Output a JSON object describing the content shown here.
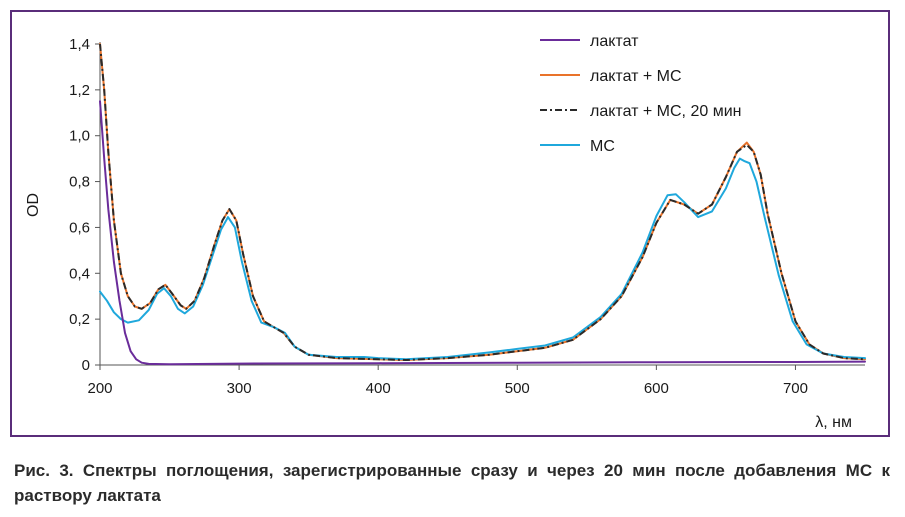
{
  "caption": "Рис. 3. Спектры поглощения, зарегистрированные сразу и через 20 мин после добавления МС к раствору лактата",
  "chart_data": {
    "type": "line",
    "xlabel": "λ, нм",
    "ylabel": "OD",
    "xlim": [
      200,
      750
    ],
    "ylim": [
      0,
      1.4
    ],
    "x_ticks": [
      "200",
      "300",
      "400",
      "500",
      "600",
      "700"
    ],
    "y_ticks": [
      "0",
      "0,2",
      "0,4",
      "0,6",
      "0,8",
      "1,0",
      "1,2",
      "1,4"
    ],
    "grid": false,
    "legend_position": "top-right",
    "series": [
      {
        "name": "лактат",
        "color": "#6a2c9a",
        "dash": "solid",
        "points": [
          [
            200,
            1.15
          ],
          [
            203,
            0.9
          ],
          [
            206,
            0.68
          ],
          [
            210,
            0.45
          ],
          [
            214,
            0.28
          ],
          [
            218,
            0.14
          ],
          [
            222,
            0.06
          ],
          [
            226,
            0.025
          ],
          [
            230,
            0.01
          ],
          [
            235,
            0.005
          ],
          [
            250,
            0.003
          ],
          [
            300,
            0.006
          ],
          [
            400,
            0.008
          ],
          [
            500,
            0.01
          ],
          [
            600,
            0.012
          ],
          [
            700,
            0.013
          ],
          [
            750,
            0.015
          ]
        ]
      },
      {
        "name": "лактат + МС",
        "color": "#e9732a",
        "dash": "solid",
        "points": [
          [
            200,
            1.4
          ],
          [
            203,
            1.2
          ],
          [
            206,
            0.93
          ],
          [
            210,
            0.63
          ],
          [
            215,
            0.4
          ],
          [
            220,
            0.3
          ],
          [
            225,
            0.255
          ],
          [
            230,
            0.245
          ],
          [
            236,
            0.27
          ],
          [
            242,
            0.33
          ],
          [
            247,
            0.35
          ],
          [
            252,
            0.31
          ],
          [
            258,
            0.26
          ],
          [
            262,
            0.245
          ],
          [
            268,
            0.28
          ],
          [
            275,
            0.38
          ],
          [
            282,
            0.52
          ],
          [
            288,
            0.63
          ],
          [
            293,
            0.68
          ],
          [
            298,
            0.63
          ],
          [
            303,
            0.48
          ],
          [
            310,
            0.3
          ],
          [
            318,
            0.19
          ],
          [
            325,
            0.165
          ],
          [
            332,
            0.14
          ],
          [
            340,
            0.08
          ],
          [
            350,
            0.045
          ],
          [
            370,
            0.03
          ],
          [
            400,
            0.025
          ],
          [
            420,
            0.022
          ],
          [
            450,
            0.03
          ],
          [
            480,
            0.045
          ],
          [
            500,
            0.06
          ],
          [
            520,
            0.075
          ],
          [
            540,
            0.11
          ],
          [
            560,
            0.2
          ],
          [
            575,
            0.3
          ],
          [
            590,
            0.47
          ],
          [
            600,
            0.62
          ],
          [
            610,
            0.72
          ],
          [
            620,
            0.7
          ],
          [
            630,
            0.66
          ],
          [
            640,
            0.7
          ],
          [
            650,
            0.82
          ],
          [
            658,
            0.93
          ],
          [
            665,
            0.97
          ],
          [
            670,
            0.93
          ],
          [
            675,
            0.83
          ],
          [
            680,
            0.66
          ],
          [
            690,
            0.4
          ],
          [
            700,
            0.19
          ],
          [
            710,
            0.09
          ],
          [
            720,
            0.05
          ],
          [
            735,
            0.03
          ],
          [
            750,
            0.025
          ]
        ]
      },
      {
        "name": "лактат + МС, 20 мин",
        "color": "#2a2a2a",
        "dash": "dashdot",
        "points": [
          [
            200,
            1.4
          ],
          [
            203,
            1.2
          ],
          [
            206,
            0.93
          ],
          [
            210,
            0.63
          ],
          [
            215,
            0.4
          ],
          [
            220,
            0.3
          ],
          [
            225,
            0.255
          ],
          [
            230,
            0.245
          ],
          [
            236,
            0.27
          ],
          [
            242,
            0.33
          ],
          [
            247,
            0.35
          ],
          [
            252,
            0.31
          ],
          [
            258,
            0.26
          ],
          [
            262,
            0.245
          ],
          [
            268,
            0.28
          ],
          [
            275,
            0.38
          ],
          [
            282,
            0.52
          ],
          [
            288,
            0.63
          ],
          [
            293,
            0.68
          ],
          [
            298,
            0.63
          ],
          [
            303,
            0.48
          ],
          [
            310,
            0.3
          ],
          [
            318,
            0.19
          ],
          [
            325,
            0.165
          ],
          [
            332,
            0.14
          ],
          [
            340,
            0.08
          ],
          [
            350,
            0.045
          ],
          [
            370,
            0.03
          ],
          [
            400,
            0.025
          ],
          [
            420,
            0.022
          ],
          [
            450,
            0.03
          ],
          [
            480,
            0.045
          ],
          [
            500,
            0.06
          ],
          [
            520,
            0.075
          ],
          [
            540,
            0.11
          ],
          [
            560,
            0.2
          ],
          [
            575,
            0.3
          ],
          [
            590,
            0.47
          ],
          [
            600,
            0.62
          ],
          [
            610,
            0.72
          ],
          [
            620,
            0.7
          ],
          [
            630,
            0.66
          ],
          [
            640,
            0.7
          ],
          [
            650,
            0.82
          ],
          [
            658,
            0.93
          ],
          [
            665,
            0.96
          ],
          [
            670,
            0.93
          ],
          [
            675,
            0.83
          ],
          [
            680,
            0.66
          ],
          [
            690,
            0.4
          ],
          [
            700,
            0.19
          ],
          [
            710,
            0.09
          ],
          [
            720,
            0.05
          ],
          [
            735,
            0.03
          ],
          [
            750,
            0.025
          ]
        ]
      },
      {
        "name": "МС",
        "color": "#1fa8dc",
        "dash": "solid",
        "points": [
          [
            200,
            0.32
          ],
          [
            205,
            0.28
          ],
          [
            210,
            0.23
          ],
          [
            215,
            0.2
          ],
          [
            220,
            0.185
          ],
          [
            228,
            0.195
          ],
          [
            235,
            0.24
          ],
          [
            241,
            0.31
          ],
          [
            246,
            0.335
          ],
          [
            251,
            0.3
          ],
          [
            256,
            0.245
          ],
          [
            261,
            0.225
          ],
          [
            267,
            0.255
          ],
          [
            274,
            0.35
          ],
          [
            281,
            0.48
          ],
          [
            287,
            0.59
          ],
          [
            292,
            0.645
          ],
          [
            297,
            0.6
          ],
          [
            302,
            0.45
          ],
          [
            309,
            0.28
          ],
          [
            316,
            0.185
          ],
          [
            325,
            0.165
          ],
          [
            333,
            0.14
          ],
          [
            340,
            0.08
          ],
          [
            350,
            0.045
          ],
          [
            370,
            0.035
          ],
          [
            390,
            0.035
          ],
          [
            400,
            0.03
          ],
          [
            420,
            0.025
          ],
          [
            450,
            0.035
          ],
          [
            480,
            0.055
          ],
          [
            500,
            0.07
          ],
          [
            520,
            0.085
          ],
          [
            540,
            0.12
          ],
          [
            560,
            0.21
          ],
          [
            575,
            0.31
          ],
          [
            590,
            0.49
          ],
          [
            600,
            0.65
          ],
          [
            608,
            0.74
          ],
          [
            614,
            0.745
          ],
          [
            620,
            0.71
          ],
          [
            630,
            0.645
          ],
          [
            640,
            0.67
          ],
          [
            650,
            0.77
          ],
          [
            656,
            0.86
          ],
          [
            660,
            0.9
          ],
          [
            663,
            0.89
          ],
          [
            667,
            0.88
          ],
          [
            672,
            0.8
          ],
          [
            678,
            0.64
          ],
          [
            688,
            0.39
          ],
          [
            698,
            0.19
          ],
          [
            708,
            0.09
          ],
          [
            720,
            0.05
          ],
          [
            735,
            0.035
          ],
          [
            750,
            0.03
          ]
        ]
      }
    ]
  }
}
